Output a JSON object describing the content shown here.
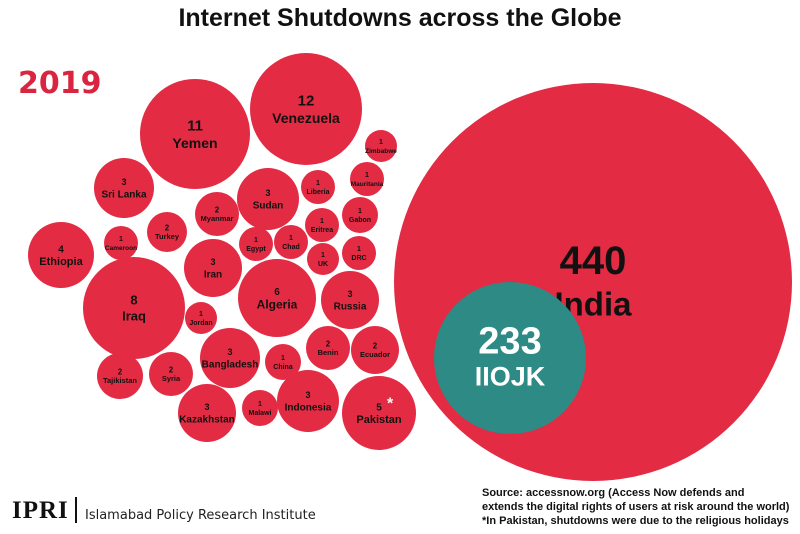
{
  "title": "Internet Shutdowns across the Globe",
  "year": "2019",
  "logo": {
    "text": "IPRI",
    "subtitle": "Islamabad Policy Research Institute"
  },
  "source": {
    "line1": "Source: accessnow.org (Access Now defends and",
    "line2": "extends the digital rights of users at risk around the world)",
    "note": "*In Pakistan, shutdowns were due to the religious holidays"
  },
  "colors": {
    "bubble": "#e32b44",
    "inner": "#2d8a85",
    "accent": "#d9253f"
  },
  "chart_data": {
    "type": "bubble",
    "title": "Internet Shutdowns across the Globe",
    "subtitle": "2019",
    "series": [
      {
        "label": "India",
        "value": 440
      },
      {
        "label": "IIOJK",
        "value": 233,
        "nested_in": "India"
      },
      {
        "label": "Venezuela",
        "value": 12
      },
      {
        "label": "Yemen",
        "value": 11
      },
      {
        "label": "Iraq",
        "value": 8
      },
      {
        "label": "Algeria",
        "value": 6
      },
      {
        "label": "Pakistan",
        "value": 5,
        "footnote": "*"
      },
      {
        "label": "Ethiopia",
        "value": 4
      },
      {
        "label": "Sri Lanka",
        "value": 3
      },
      {
        "label": "Sudan",
        "value": 3
      },
      {
        "label": "Iran",
        "value": 3
      },
      {
        "label": "Russia",
        "value": 3
      },
      {
        "label": "Bangladesh",
        "value": 3
      },
      {
        "label": "Kazakhstan",
        "value": 3
      },
      {
        "label": "Indonesia",
        "value": 3
      },
      {
        "label": "Myanmar",
        "value": 2
      },
      {
        "label": "Turkey",
        "value": 2
      },
      {
        "label": "Syria",
        "value": 2
      },
      {
        "label": "Tajikistan",
        "value": 2
      },
      {
        "label": "Benin",
        "value": 2
      },
      {
        "label": "Ecuador",
        "value": 2
      },
      {
        "label": "Zimbabwe",
        "value": 1
      },
      {
        "label": "Liberia",
        "value": 1
      },
      {
        "label": "Mauritania",
        "value": 1
      },
      {
        "label": "Gabon",
        "value": 1
      },
      {
        "label": "Eritrea",
        "value": 1
      },
      {
        "label": "Cameroon",
        "value": 1
      },
      {
        "label": "Egypt",
        "value": 1
      },
      {
        "label": "Chad",
        "value": 1
      },
      {
        "label": "UK",
        "value": 1
      },
      {
        "label": "DRC",
        "value": 1
      },
      {
        "label": "Jordan",
        "value": 1
      },
      {
        "label": "China",
        "value": 1
      },
      {
        "label": "Malawi",
        "value": 1
      }
    ]
  }
}
